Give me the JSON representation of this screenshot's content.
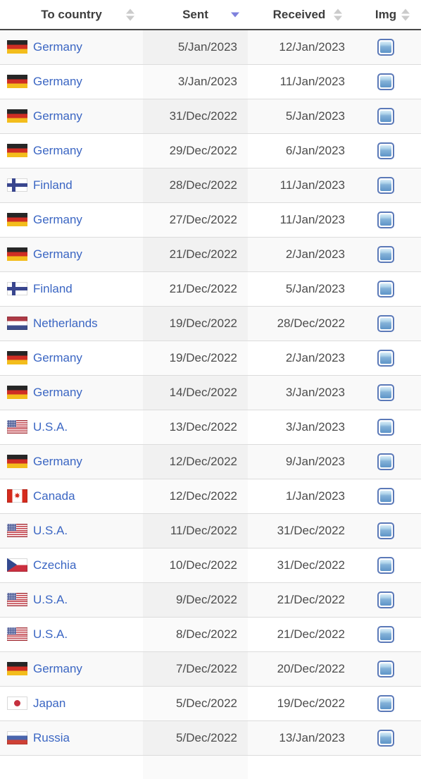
{
  "filter_input": {
    "value": "",
    "placeholder": ""
  },
  "table": {
    "img_icon": "image-thumbnail-icon",
    "columns": [
      {
        "label": "To country",
        "sort": "none",
        "sortable": true
      },
      {
        "label": "Sent",
        "sort": "desc",
        "sortable": true
      },
      {
        "label": "Received",
        "sort": "none",
        "sortable": true
      },
      {
        "label": "Img",
        "sort": "none",
        "sortable": true
      }
    ],
    "rows": [
      {
        "country": "Germany",
        "flag": "de",
        "sent": "5/Jan/2023",
        "received": "12/Jan/2023"
      },
      {
        "country": "Germany",
        "flag": "de",
        "sent": "3/Jan/2023",
        "received": "11/Jan/2023"
      },
      {
        "country": "Germany",
        "flag": "de",
        "sent": "31/Dec/2022",
        "received": "5/Jan/2023"
      },
      {
        "country": "Germany",
        "flag": "de",
        "sent": "29/Dec/2022",
        "received": "6/Jan/2023"
      },
      {
        "country": "Finland",
        "flag": "fi",
        "sent": "28/Dec/2022",
        "received": "11/Jan/2023"
      },
      {
        "country": "Germany",
        "flag": "de",
        "sent": "27/Dec/2022",
        "received": "11/Jan/2023"
      },
      {
        "country": "Germany",
        "flag": "de",
        "sent": "21/Dec/2022",
        "received": "2/Jan/2023"
      },
      {
        "country": "Finland",
        "flag": "fi",
        "sent": "21/Dec/2022",
        "received": "5/Jan/2023"
      },
      {
        "country": "Netherlands",
        "flag": "nl",
        "sent": "19/Dec/2022",
        "received": "28/Dec/2022"
      },
      {
        "country": "Germany",
        "flag": "de",
        "sent": "19/Dec/2022",
        "received": "2/Jan/2023"
      },
      {
        "country": "Germany",
        "flag": "de",
        "sent": "14/Dec/2022",
        "received": "3/Jan/2023"
      },
      {
        "country": "U.S.A.",
        "flag": "us",
        "sent": "13/Dec/2022",
        "received": "3/Jan/2023"
      },
      {
        "country": "Germany",
        "flag": "de",
        "sent": "12/Dec/2022",
        "received": "9/Jan/2023"
      },
      {
        "country": "Canada",
        "flag": "ca",
        "sent": "12/Dec/2022",
        "received": "1/Jan/2023"
      },
      {
        "country": "U.S.A.",
        "flag": "us",
        "sent": "11/Dec/2022",
        "received": "31/Dec/2022"
      },
      {
        "country": "Czechia",
        "flag": "cz",
        "sent": "10/Dec/2022",
        "received": "31/Dec/2022"
      },
      {
        "country": "U.S.A.",
        "flag": "us",
        "sent": "9/Dec/2022",
        "received": "21/Dec/2022"
      },
      {
        "country": "U.S.A.",
        "flag": "us",
        "sent": "8/Dec/2022",
        "received": "21/Dec/2022"
      },
      {
        "country": "Germany",
        "flag": "de",
        "sent": "7/Dec/2022",
        "received": "20/Dec/2022"
      },
      {
        "country": "Japan",
        "flag": "jp",
        "sent": "5/Dec/2022",
        "received": "19/Dec/2022"
      },
      {
        "country": "Russia",
        "flag": "ru",
        "sent": "5/Dec/2022",
        "received": "13/Jan/2023"
      }
    ]
  },
  "colors": {
    "link": "#3b66c3",
    "header_text": "#3d3d3d",
    "body_text": "#4c4c4c",
    "active_sort_arrow": "#7e81dd",
    "inactive_sort_arrow": "#cbcbcb",
    "row_stripe": "#f9f9f9",
    "sorted_column_stripe": "#f1f1f1",
    "sorted_column_on_white": "#fafafa",
    "row_border": "#dcdcdc",
    "header_border": "#474747",
    "img_icon_border": "#5b79b8"
  }
}
